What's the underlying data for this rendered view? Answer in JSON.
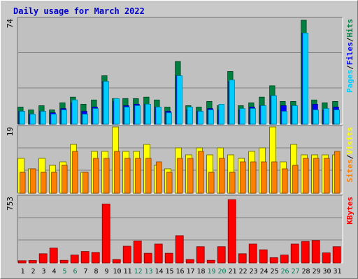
{
  "chart_data": {
    "type": "bar",
    "title": "Daily usage for March 2022",
    "categories": [
      "1",
      "2",
      "3",
      "4",
      "5",
      "6",
      "7",
      "8",
      "9",
      "10",
      "11",
      "12",
      "13",
      "14",
      "15",
      "16",
      "17",
      "18",
      "19",
      "20",
      "21",
      "22",
      "23",
      "24",
      "25",
      "26",
      "27",
      "28",
      "29",
      "30",
      "31"
    ],
    "weekend_days": [
      5,
      6,
      12,
      13,
      19,
      20,
      26,
      27
    ],
    "panels": [
      {
        "id": "hits-files-pages",
        "ylabel_parts": [
          {
            "text": "Pages",
            "color": "#00ccff"
          },
          {
            "text": "/",
            "color": "#000000"
          },
          {
            "text": "Files",
            "color": "#0000ff"
          },
          {
            "text": "/",
            "color": "#000000"
          },
          {
            "text": "Hits",
            "color": "#008040"
          }
        ],
        "max_label": "74",
        "ylim": [
          0,
          74
        ],
        "series": [
          {
            "name": "Hits",
            "color": "#008040",
            "values": [
              12,
              10,
              13,
              10,
              15,
              19,
              14,
              17,
              34,
              18,
              18,
              18,
              19,
              17,
              12,
              44,
              13,
              12,
              16,
              13,
              37,
              13,
              15,
              19,
              27,
              16,
              16,
              73,
              17,
              15,
              16
            ]
          },
          {
            "name": "Files",
            "color": "#0000ff",
            "values": [
              9,
              7,
              9,
              8,
              11,
              15,
              9,
              12,
              30,
              16,
              13,
              14,
              14,
              12,
              9,
              34,
              10,
              9,
              11,
              10,
              30,
              10,
              12,
              13,
              20,
              13,
              13,
              64,
              14,
              10,
              12
            ]
          },
          {
            "name": "Pages",
            "color": "#00ccff",
            "values": [
              9,
              7,
              9,
              7,
              10,
              17,
              7,
              11,
              30,
              18,
              12,
              13,
              14,
              12,
              8,
              34,
              12,
              9,
              10,
              14,
              31,
              11,
              11,
              13,
              20,
              9,
              13,
              64,
              10,
              11,
              10
            ]
          }
        ]
      },
      {
        "id": "visits-sites",
        "ylabel_parts": [
          {
            "text": "Sites",
            "color": "#ff8000"
          },
          {
            "text": "/",
            "color": "#000000"
          },
          {
            "text": "Visits",
            "color": "#ffff00"
          }
        ],
        "max_label": "19",
        "ylim": [
          0,
          19
        ],
        "series": [
          {
            "name": "Visits",
            "color": "#ffff00",
            "values": [
              10,
              7,
              10,
              8,
              9,
              14,
              6,
              12,
              12,
              19,
              12,
              12,
              14,
              8,
              7,
              13,
              11,
              13,
              11,
              13,
              11,
              10,
              12,
              13,
              19,
              9,
              14,
              11,
              11,
              11,
              11
            ]
          },
          {
            "name": "Sites",
            "color": "#ff8000",
            "values": [
              6,
              7,
              6,
              6,
              8,
              12,
              6,
              10,
              10,
              12,
              10,
              10,
              10,
              9,
              6,
              10,
              10,
              12,
              6,
              10,
              6,
              9,
              9,
              9,
              9,
              7,
              8,
              10,
              10,
              10,
              12
            ]
          }
        ]
      },
      {
        "id": "kbytes",
        "ylabel_parts": [
          {
            "text": "KBytes",
            "color": "#ff0000"
          }
        ],
        "max_label": "753",
        "ylim": [
          0,
          753
        ],
        "series": [
          {
            "name": "KBytes",
            "color": "#ff0000",
            "values": [
              25,
              28,
              105,
              170,
              30,
              90,
              130,
              120,
              670,
              40,
              190,
              250,
              110,
              215,
              110,
              310,
              40,
              185,
              30,
              185,
              720,
              105,
              215,
              150,
              60,
              90,
              215,
              245,
              255,
              115,
              185
            ]
          }
        ]
      }
    ]
  }
}
